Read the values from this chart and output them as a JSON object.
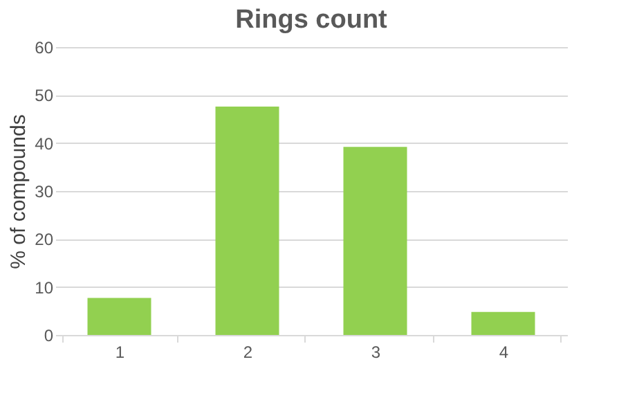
{
  "chart_data": {
    "type": "bar",
    "title": "Rings count",
    "ylabel": "% of compounds",
    "categories": [
      "1",
      "2",
      "3",
      "4"
    ],
    "values": [
      7.7,
      47.6,
      39.2,
      4.8
    ],
    "color": "#92d050",
    "ylim": [
      0,
      60
    ],
    "yticks": [
      0,
      10,
      20,
      30,
      40,
      50,
      60
    ],
    "grid": "y"
  }
}
